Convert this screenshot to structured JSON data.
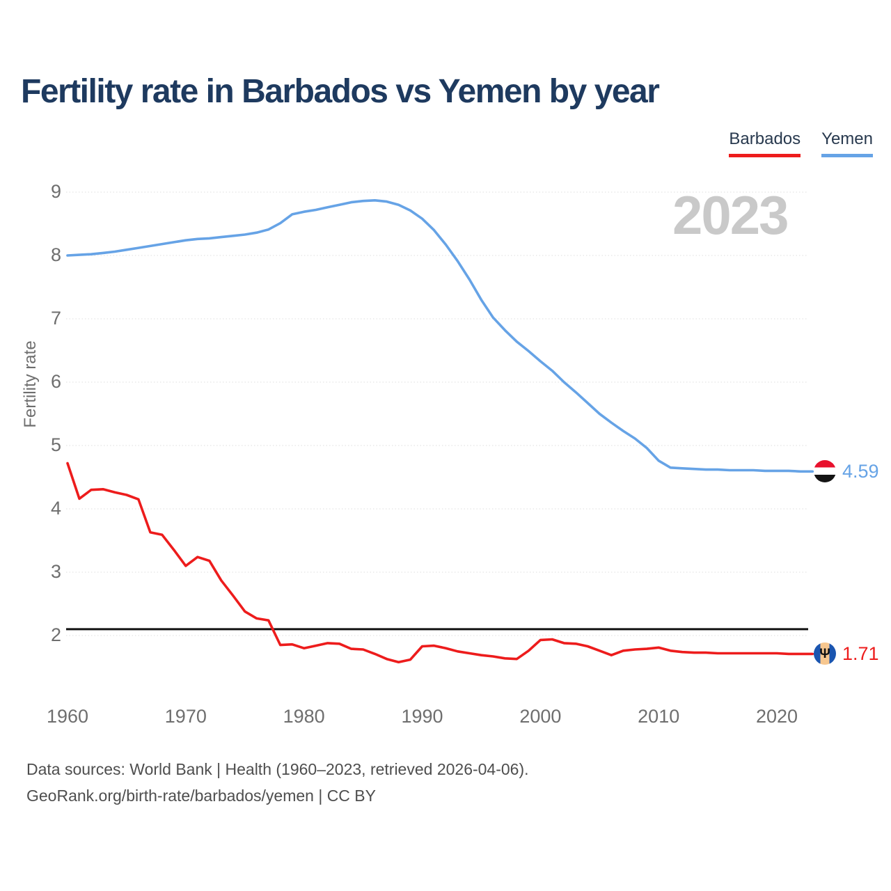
{
  "title": "Fertility rate in Barbados vs Yemen by year",
  "watermark": "2023",
  "legend": {
    "items": [
      {
        "label": "Barbados",
        "color": "#ed1c1c"
      },
      {
        "label": "Yemen",
        "color": "#66a3e6"
      }
    ]
  },
  "footer": {
    "line1": "Data sources: World Bank | Health (1960–2023, retrieved 2026-04-06).",
    "line2": "GeoRank.org/birth-rate/barbados/yemen | CC BY"
  },
  "icons": {
    "barbados_flag": "circular Barbados flag: blue-gold-blue vertical bands with black trident",
    "yemen_flag": "circular Yemen flag: red-white-black horizontal bands"
  },
  "colors": {
    "title_text": "#1e3a5f",
    "axis_text": "#6e6e6e",
    "watermark": "#c9c9c9",
    "reference_line": "#121212",
    "barbados_line": "#ed1c1c",
    "yemen_line": "#66a3e6"
  },
  "chart_data": {
    "type": "line",
    "title": "Fertility rate in Barbados vs Yemen by year",
    "ylabel": "Fertility rate",
    "xlabel": "",
    "x": [
      1960,
      1961,
      1962,
      1963,
      1964,
      1965,
      1966,
      1967,
      1968,
      1969,
      1970,
      1971,
      1972,
      1973,
      1974,
      1975,
      1976,
      1977,
      1978,
      1979,
      1980,
      1981,
      1982,
      1983,
      1984,
      1985,
      1986,
      1987,
      1988,
      1989,
      1990,
      1991,
      1992,
      1993,
      1994,
      1995,
      1996,
      1997,
      1998,
      1999,
      2000,
      2001,
      2002,
      2003,
      2004,
      2005,
      2006,
      2007,
      2008,
      2009,
      2010,
      2011,
      2012,
      2013,
      2014,
      2015,
      2016,
      2017,
      2018,
      2019,
      2020,
      2021,
      2022,
      2023
    ],
    "series": [
      {
        "name": "Barbados",
        "color": "#ed1c1c",
        "values": [
          4.72,
          4.16,
          4.3,
          4.31,
          4.26,
          4.22,
          4.15,
          3.63,
          3.59,
          3.35,
          3.1,
          3.24,
          3.18,
          2.87,
          2.63,
          2.38,
          2.27,
          2.24,
          1.85,
          1.86,
          1.8,
          1.84,
          1.88,
          1.87,
          1.79,
          1.78,
          1.71,
          1.63,
          1.58,
          1.62,
          1.83,
          1.84,
          1.8,
          1.75,
          1.72,
          1.69,
          1.67,
          1.64,
          1.63,
          1.76,
          1.93,
          1.94,
          1.88,
          1.87,
          1.83,
          1.76,
          1.69,
          1.76,
          1.78,
          1.79,
          1.81,
          1.76,
          1.74,
          1.73,
          1.73,
          1.72,
          1.72,
          1.72,
          1.72,
          1.72,
          1.72,
          1.71,
          1.71,
          1.71
        ]
      },
      {
        "name": "Yemen",
        "color": "#66a3e6",
        "values": [
          8.0,
          8.01,
          8.02,
          8.04,
          8.06,
          8.09,
          8.12,
          8.15,
          8.18,
          8.21,
          8.24,
          8.26,
          8.27,
          8.29,
          8.31,
          8.33,
          8.36,
          8.41,
          8.51,
          8.65,
          8.69,
          8.72,
          8.76,
          8.8,
          8.84,
          8.86,
          8.87,
          8.85,
          8.8,
          8.71,
          8.58,
          8.4,
          8.17,
          7.91,
          7.62,
          7.3,
          7.02,
          6.82,
          6.64,
          6.49,
          6.33,
          6.18,
          6.0,
          5.84,
          5.67,
          5.5,
          5.36,
          5.23,
          5.11,
          4.96,
          4.76,
          4.65,
          4.64,
          4.63,
          4.62,
          4.62,
          4.61,
          4.61,
          4.61,
          4.6,
          4.6,
          4.6,
          4.59,
          4.59
        ]
      }
    ],
    "xticks": [
      1960,
      1970,
      1980,
      1990,
      2000,
      2010,
      2020
    ],
    "yticks": [
      2,
      3,
      4,
      5,
      6,
      7,
      8,
      9
    ],
    "ylim": [
      1.45,
      9.35
    ],
    "reference_line": 2.1,
    "grid": "horizontal-dotted",
    "legend_position": "top-right",
    "end_labels": {
      "barbados": "1.71",
      "yemen": "4.59"
    }
  }
}
